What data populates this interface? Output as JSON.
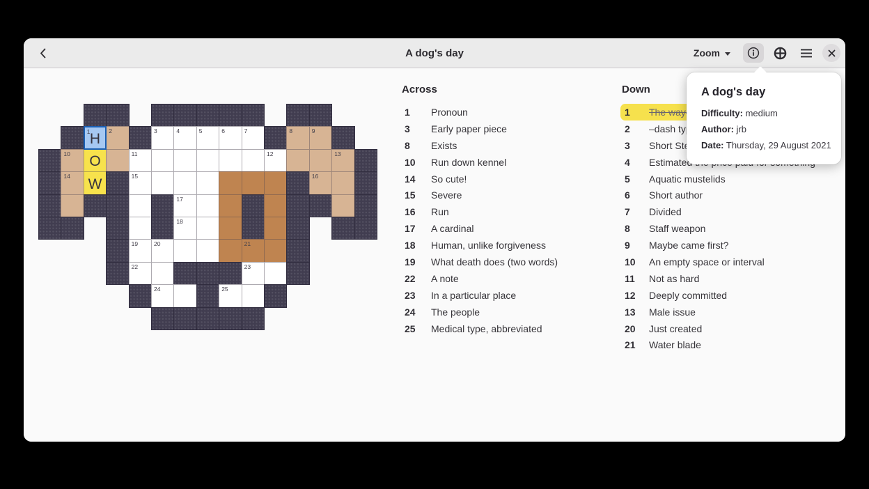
{
  "header": {
    "title": "A dog's day",
    "zoom_label": "Zoom"
  },
  "popover": {
    "title": "A dog's day",
    "fields": [
      {
        "label": "Difficulty:",
        "value": "medium"
      },
      {
        "label": "Author:",
        "value": "jrb"
      },
      {
        "label": "Date:",
        "value": "Thursday, 29 August 2021"
      }
    ]
  },
  "clues": {
    "across_title": "Across",
    "across": [
      {
        "n": "1",
        "text": "Pronoun"
      },
      {
        "n": "3",
        "text": "Early paper piece"
      },
      {
        "n": "8",
        "text": "Exists"
      },
      {
        "n": "10",
        "text": "Run down kennel"
      },
      {
        "n": "14",
        "text": "So cute!"
      },
      {
        "n": "15",
        "text": "Severe"
      },
      {
        "n": "16",
        "text": "Run"
      },
      {
        "n": "17",
        "text": "A cardinal"
      },
      {
        "n": "18",
        "text": "Human, unlike forgiveness"
      },
      {
        "n": "19",
        "text": "What death does (two words)"
      },
      {
        "n": "22",
        "text": "A note"
      },
      {
        "n": "23",
        "text": "In a particular place"
      },
      {
        "n": "24",
        "text": "The people"
      },
      {
        "n": "25",
        "text": "Medical type, abbreviated"
      }
    ],
    "down_title": "Down",
    "down": [
      {
        "n": "1",
        "text": "The way—",
        "selected": true,
        "struck": true
      },
      {
        "n": "2",
        "text": "–dash typ"
      },
      {
        "n": "3",
        "text": "Short Ste"
      },
      {
        "n": "4",
        "text": "Estimated the price paid for something"
      },
      {
        "n": "5",
        "text": "Aquatic mustelids"
      },
      {
        "n": "6",
        "text": "Short author"
      },
      {
        "n": "7",
        "text": "Divided"
      },
      {
        "n": "8",
        "text": "Staff weapon"
      },
      {
        "n": "9",
        "text": "Maybe came first?"
      },
      {
        "n": "10",
        "text": "An empty space or interval"
      },
      {
        "n": "11",
        "text": "Not as hard"
      },
      {
        "n": "12",
        "text": "Deeply committed"
      },
      {
        "n": "13",
        "text": "Male issue"
      },
      {
        "n": "20",
        "text": "Just created"
      },
      {
        "n": "21",
        "text": "Water blade"
      }
    ]
  },
  "grid": {
    "legend": {
      "X": "block",
      "W": "white",
      "T": "tan",
      "B": "brown",
      "Y": "highlighted-word",
      "C": "cursor-cell",
      "token_format": "type:number:letter"
    },
    "rows": [
      [
        "",
        "",
        "X",
        "X",
        "",
        "X",
        "X",
        "X",
        "X",
        "X",
        "",
        "X",
        "X",
        "",
        ""
      ],
      [
        "",
        "X",
        "C:1:H",
        "T:2",
        "X",
        "W:3",
        "W:4",
        "W:5",
        "W:6",
        "W:7",
        "X",
        "T:8",
        "T:9",
        "X",
        ""
      ],
      [
        "X",
        "T:10",
        "Y::O",
        "T",
        "W:11",
        "W",
        "W",
        "W",
        "W",
        "W",
        "W:12",
        "T",
        "T",
        "T:13",
        "X"
      ],
      [
        "X",
        "T:14",
        "Y::W",
        "X",
        "W:15",
        "W",
        "W",
        "W",
        "B",
        "B",
        "B",
        "X",
        "T:16",
        "T",
        "X"
      ],
      [
        "X",
        "T",
        "X",
        "X",
        "W",
        "X",
        "W:17",
        "W",
        "B",
        "X",
        "B",
        "X",
        "X",
        "T",
        "X"
      ],
      [
        "X",
        "X",
        "",
        "X",
        "W",
        "X",
        "W:18",
        "W",
        "B",
        "X",
        "B",
        "X",
        "",
        "X",
        "X"
      ],
      [
        "",
        "",
        "",
        "X",
        "W:19",
        "W:20",
        "W",
        "W",
        "B",
        "B:21",
        "B",
        "X",
        "",
        "",
        ""
      ],
      [
        "",
        "",
        "",
        "X",
        "W:22",
        "W",
        "X",
        "X",
        "X",
        "W:23",
        "W",
        "X",
        "",
        "",
        ""
      ],
      [
        "",
        "",
        "",
        "",
        "X",
        "W:24",
        "W",
        "X",
        "W:25",
        "W",
        "X",
        "",
        "",
        "",
        ""
      ],
      [
        "",
        "",
        "",
        "",
        "",
        "X",
        "X",
        "X",
        "X",
        "X",
        "",
        "",
        "",
        "",
        ""
      ]
    ]
  },
  "colors": {
    "block": "#413d50",
    "tan": "#d7b494",
    "brown": "#bf8450",
    "highlight": "#f7e24c",
    "cursor_bg": "#a6c8f2",
    "cursor_border": "#1a5fb4",
    "selected_row": "#f6e14d",
    "header_bg": "#ebebeb",
    "content_bg": "#fafafa"
  }
}
